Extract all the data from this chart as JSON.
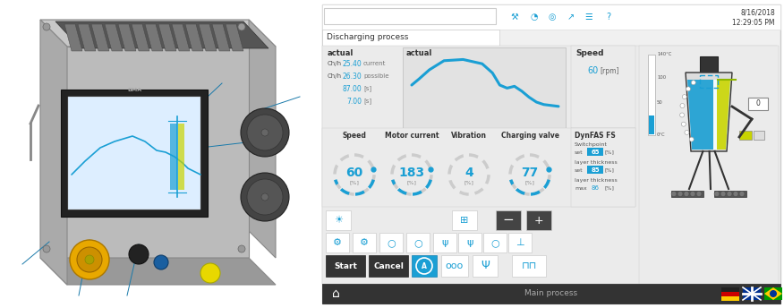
{
  "bg_color": "#ffffff",
  "blue": "#1a9fd4",
  "dark_gray": "#333333",
  "light_gray": "#cccccc",
  "date": "8/16/2018",
  "time": "12:29:05 PM",
  "process_name": "Discharging process",
  "speed_rpm": "60",
  "motor_current_val": "183",
  "vibration_val": "4",
  "charging_valve_val": "77",
  "speed_val": "60",
  "ch_h_current": "25.40",
  "ch_h_possible": "26.30",
  "val_87": "87.00",
  "val_7": "7.00",
  "switchpoint_set": "65",
  "layer_set": "85",
  "layer_max": "86",
  "main_process": "Main process",
  "green_color": "#c8d400"
}
